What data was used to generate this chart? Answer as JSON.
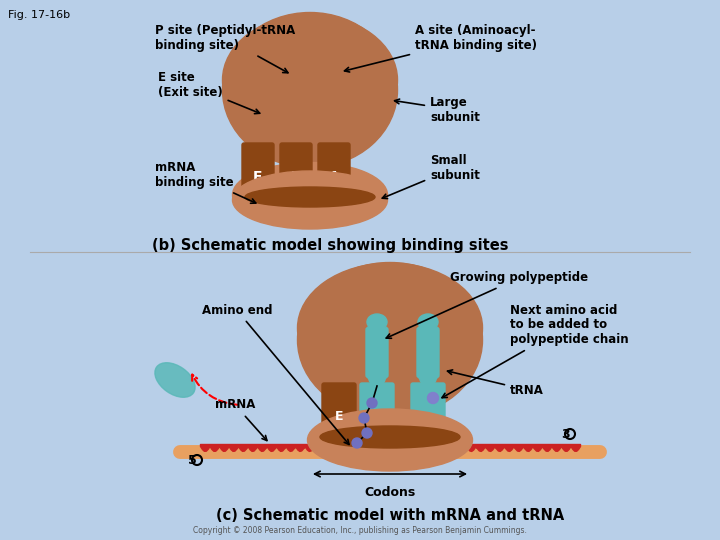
{
  "fig_label": "Fig. 17-16b",
  "bg_color": "#b8cfe8",
  "border_color": "#c8d8e8",
  "title_b": "(b) Schematic model showing binding sites",
  "title_c": "(c) Schematic model with mRNA and tRNA",
  "copyright": "Copyright © 2008 Pearson Education, Inc., publishing as Pearson Benjamin Cummings.",
  "ribosome_large_color": "#b5714a",
  "ribosome_small_color": "#c8825a",
  "ribosome_channel_color": "#8b4513",
  "tRNA_color": "#5ab8b8",
  "mRNA_color": "#cc2222",
  "mRNA_strand_color": "#e8a060",
  "polypeptide_color": "#7070c0",
  "labels": {
    "p_site": "P site (Peptidyl-tRNA\nbinding site)",
    "e_site": "E site\n(Exit site)",
    "a_site": "A site (Aminoacyl-\ntRNA binding site)",
    "large_subunit": "Large\nsubunit",
    "small_subunit": "Small\nsubunit",
    "mrna_binding": "mRNA\nbinding site",
    "amino_end": "Amino end",
    "growing_poly": "Growing polypeptide",
    "next_amino": "Next amino acid\nto be added to\npolypeptide chain",
    "mrna": "mRNA",
    "trna": "tRNA",
    "codons": "Codons",
    "five_prime": "5",
    "three_prime": "3",
    "e_label": "E"
  }
}
